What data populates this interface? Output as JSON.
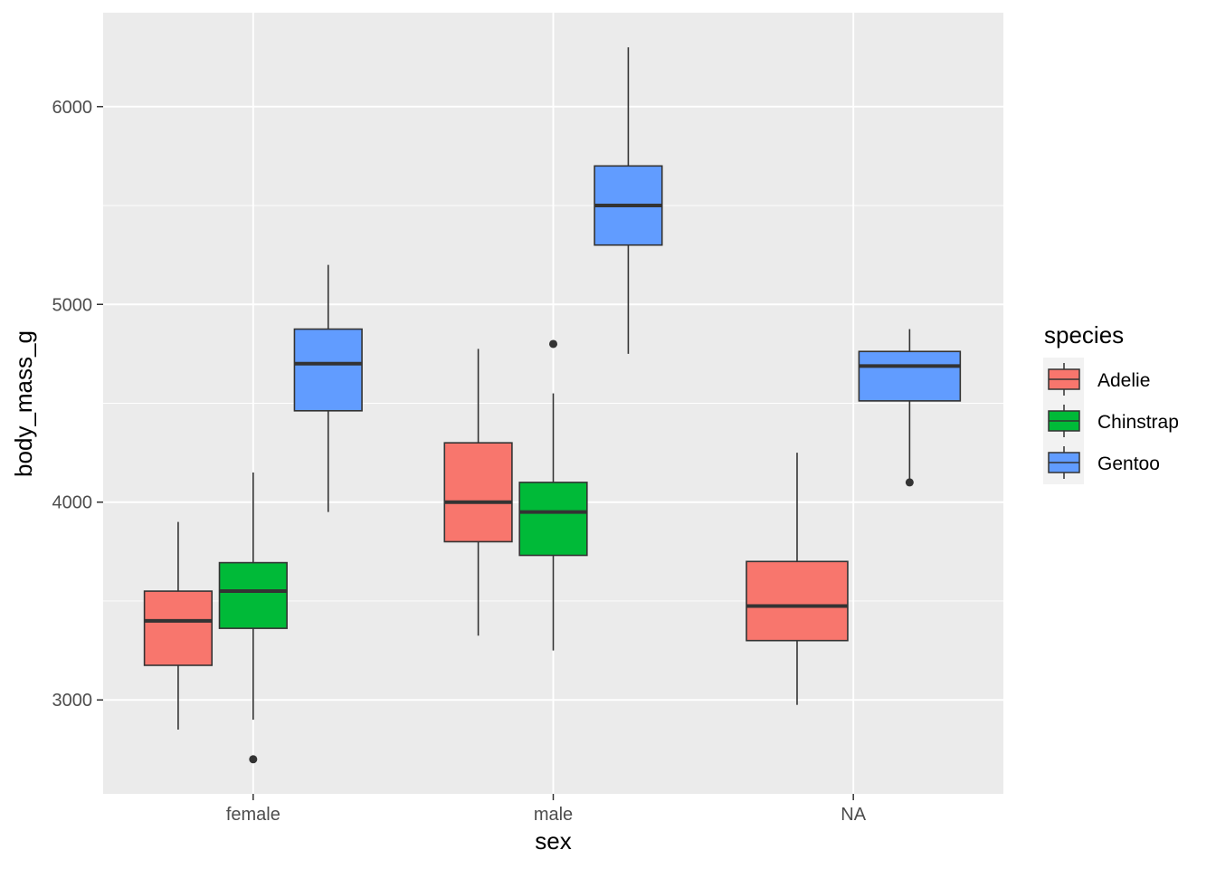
{
  "chart_data": {
    "type": "boxplot",
    "title": "",
    "xlabel": "sex",
    "ylabel": "body_mass_g",
    "categories": [
      "female",
      "male",
      "NA"
    ],
    "ylim": [
      2525,
      6475
    ],
    "yticks": [
      3000,
      4000,
      5000,
      6000
    ],
    "grid": true,
    "legend": {
      "title": "species",
      "position": "right",
      "entries": [
        "Adelie",
        "Chinstrap",
        "Gentoo"
      ]
    },
    "colors": {
      "Adelie": "#F8766D",
      "Chinstrap": "#00BA38",
      "Gentoo": "#619CFF",
      "panel": "#EBEBEB",
      "grid": "#FFFFFF",
      "outline": "#333333"
    },
    "groups": [
      {
        "category": "female",
        "boxes": [
          {
            "species": "Adelie",
            "whisker_low": 2850,
            "q1": 3175,
            "median": 3400,
            "q3": 3550,
            "whisker_high": 3900,
            "outliers": []
          },
          {
            "species": "Chinstrap",
            "whisker_low": 2900,
            "q1": 3362,
            "median": 3550,
            "q3": 3694,
            "whisker_high": 4150,
            "outliers": [
              2700
            ]
          },
          {
            "species": "Gentoo",
            "whisker_low": 3950,
            "q1": 4462,
            "median": 4700,
            "q3": 4875,
            "whisker_high": 5200,
            "outliers": []
          }
        ]
      },
      {
        "category": "male",
        "boxes": [
          {
            "species": "Adelie",
            "whisker_low": 3325,
            "q1": 3800,
            "median": 4000,
            "q3": 4300,
            "whisker_high": 4775,
            "outliers": []
          },
          {
            "species": "Chinstrap",
            "whisker_low": 3250,
            "q1": 3731,
            "median": 3950,
            "q3": 4100,
            "whisker_high": 4550,
            "outliers": [
              4800
            ]
          },
          {
            "species": "Gentoo",
            "whisker_low": 4750,
            "q1": 5300,
            "median": 5500,
            "q3": 5700,
            "whisker_high": 6300,
            "outliers": []
          }
        ]
      },
      {
        "category": "NA",
        "boxes": [
          {
            "species": "Adelie",
            "whisker_low": 2975,
            "q1": 3300,
            "median": 3475,
            "q3": 3700,
            "whisker_high": 4250,
            "outliers": []
          },
          {
            "species": "Gentoo",
            "whisker_low": 4100,
            "q1": 4512,
            "median": 4688,
            "q3": 4762,
            "whisker_high": 4875,
            "outliers": [
              4100
            ]
          }
        ]
      }
    ]
  }
}
